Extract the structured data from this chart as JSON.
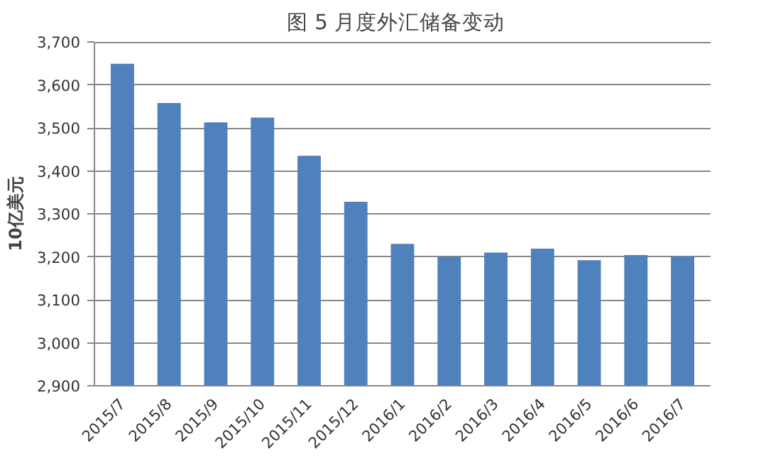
{
  "chart_data": {
    "type": "bar",
    "title": "图 5   月度外汇储备变动",
    "ylabel": "10亿美元",
    "categories": [
      "2015/7",
      "2015/8",
      "2015/9",
      "2015/10",
      "2015/11",
      "2015/12",
      "2016/1",
      "2016/2",
      "2016/3",
      "2016/4",
      "2016/5",
      "2016/6",
      "2016/7"
    ],
    "values": [
      3649,
      3558,
      3513,
      3524,
      3435,
      3328,
      3230,
      3200,
      3210,
      3219,
      3192,
      3204,
      3201
    ],
    "color": "#4f81bd",
    "ylim": [
      2900,
      3700
    ],
    "yticks": [
      {
        "value": 2900,
        "label": "2,900"
      },
      {
        "value": 3000,
        "label": "3,000"
      },
      {
        "value": 3100,
        "label": "3,100"
      },
      {
        "value": 3200,
        "label": "3,200"
      },
      {
        "value": 3300,
        "label": "3,300"
      },
      {
        "value": 3400,
        "label": "3,400"
      },
      {
        "value": 3500,
        "label": "3,500"
      },
      {
        "value": 3600,
        "label": "3,600"
      },
      {
        "value": 3700,
        "label": "3,700"
      }
    ],
    "grid": "y"
  }
}
